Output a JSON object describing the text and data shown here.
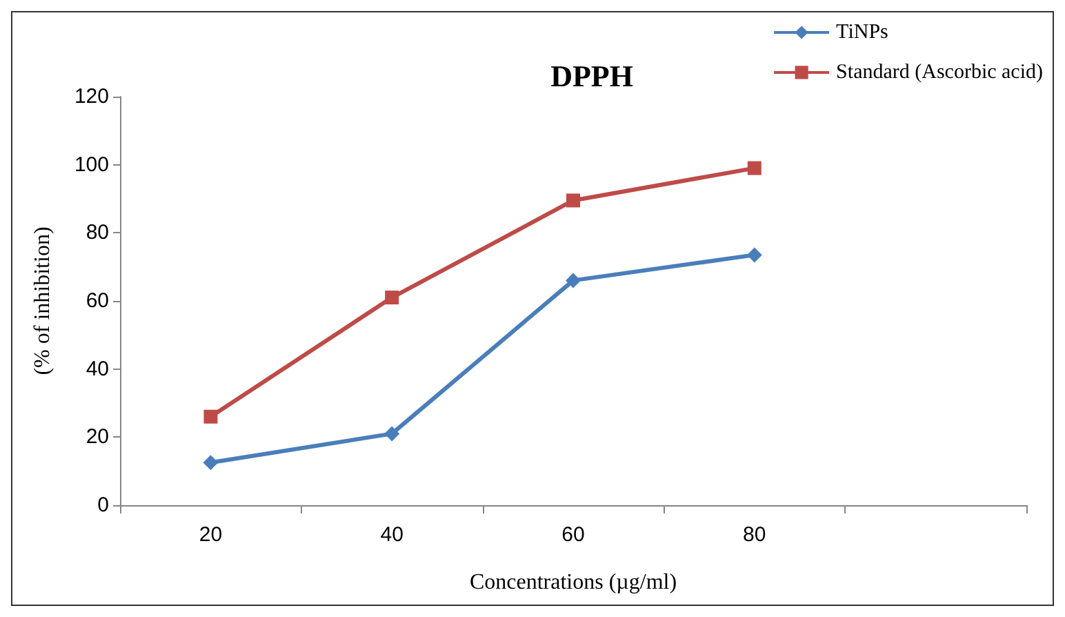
{
  "chart_data": {
    "type": "line",
    "title": "DPPH",
    "xlabel": "Concentrations (µg/ml)",
    "ylabel": "(% of inhibition)",
    "categories": [
      "20",
      "40",
      "60",
      "80",
      null
    ],
    "series": [
      {
        "name": "TiNPs",
        "color": "#4a7ebb",
        "marker": "diamond",
        "values": [
          12.5,
          21,
          66,
          73.5,
          null
        ]
      },
      {
        "name": "Standard (Ascorbic acid)",
        "color": "#be4b48",
        "marker": "square",
        "values": [
          26,
          61,
          89.5,
          99,
          null
        ]
      }
    ],
    "ylim": [
      0,
      120
    ],
    "yticks": [
      0,
      20,
      40,
      60,
      80,
      100,
      120
    ],
    "grid": false,
    "legend": "top right",
    "line_style": "solid"
  }
}
